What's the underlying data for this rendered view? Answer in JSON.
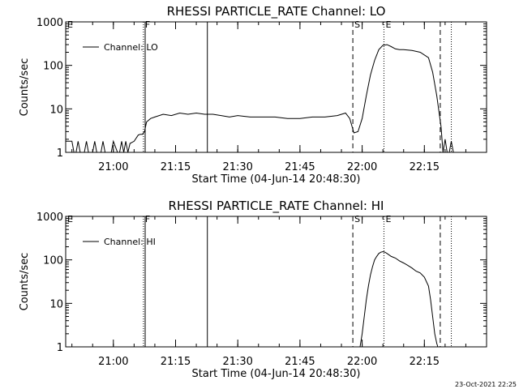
{
  "footer_timestamp": "23-Oct-2021 22:25",
  "chart_data": [
    {
      "type": "line",
      "title": "RHESSI PARTICLE_RATE Channel: LO",
      "xlabel": "Start Time (04-Jun-14 20:48:30)",
      "ylabel": "Counts/sec",
      "yscale": "log",
      "ylim": [
        1,
        1000
      ],
      "xlim_minutes_after_start": [
        0,
        101.5
      ],
      "xticks": [
        "21:00",
        "21:15",
        "21:30",
        "21:45",
        "22:00",
        "22:15"
      ],
      "yticks": [
        "1",
        "10",
        "100",
        "1000"
      ],
      "legend": "top-left",
      "series": [
        {
          "name": "Channel: LO",
          "x_time": [
            "20:48:30",
            "20:50:00",
            "20:50:30",
            "20:51:00",
            "20:51:30",
            "20:52:00",
            "20:53:00",
            "20:53:30",
            "20:54:00",
            "20:54:30",
            "20:55:00",
            "20:55:30",
            "20:56:00",
            "20:57:00",
            "20:57:30",
            "20:58:00",
            "20:58:30",
            "20:59:00",
            "20:59:30",
            "21:00:00",
            "21:01:00",
            "21:01:30",
            "21:02:00",
            "21:02:30",
            "21:03:00",
            "21:03:30",
            "21:04:00",
            "21:05:00",
            "21:06:00",
            "21:06:30",
            "21:07:00",
            "21:07:30",
            "21:08:00",
            "21:09:00",
            "21:10:00",
            "21:12:00",
            "21:14:00",
            "21:16:00",
            "21:18:00",
            "21:20:00",
            "21:22:00",
            "21:24:00",
            "21:26:00",
            "21:28:00",
            "21:30:00",
            "21:33:00",
            "21:36:00",
            "21:39:00",
            "21:42:00",
            "21:45:00",
            "21:48:00",
            "21:51:00",
            "21:54:00",
            "21:56:00",
            "21:57:00",
            "21:58:00",
            "21:59:00",
            "22:00:00",
            "22:01:00",
            "22:02:00",
            "22:03:00",
            "22:04:00",
            "22:05:00",
            "22:06:00",
            "22:07:00",
            "22:08:00",
            "22:09:00",
            "22:10:00",
            "22:12:00",
            "22:14:00",
            "22:16:00",
            "22:17:00",
            "22:18:00",
            "22:19:00",
            "22:19:30",
            "22:20:00",
            "22:20:30",
            "22:21:00",
            "22:21:30",
            "22:22:00"
          ],
          "values": [
            1.8,
            1.8,
            1,
            1,
            1.8,
            1,
            1,
            1.8,
            1,
            1,
            1,
            1.8,
            1,
            1,
            1.8,
            1,
            1,
            1,
            1,
            1.8,
            1,
            1,
            1.8,
            1,
            1.8,
            1,
            1.6,
            1.8,
            2.5,
            2.6,
            2.6,
            3,
            5,
            6,
            6.5,
            7.5,
            7,
            8,
            7.5,
            8,
            7.5,
            7.5,
            7,
            6.5,
            7,
            6.5,
            6.5,
            6.5,
            6,
            6,
            6.5,
            6.5,
            7,
            8,
            6,
            2.8,
            3,
            6,
            20,
            60,
            130,
            230,
            290,
            300,
            270,
            240,
            230,
            230,
            220,
            200,
            150,
            70,
            20,
            4,
            1,
            2,
            1,
            1,
            1.8,
            1
          ]
        }
      ],
      "vlines": [
        {
          "time": "20:48:30",
          "label": "E",
          "style": "solid"
        },
        {
          "time": "21:07:15",
          "label": "F",
          "style": "dotted"
        },
        {
          "time": "21:07:40",
          "label": "",
          "style": "solid"
        },
        {
          "time": "21:22:40",
          "label": "",
          "style": "solid"
        },
        {
          "time": "21:57:45",
          "label": "S",
          "style": "dashed"
        },
        {
          "time": "22:05:15",
          "label": "E",
          "style": "dotted"
        },
        {
          "time": "22:18:50",
          "label": "",
          "style": "dashed"
        },
        {
          "time": "22:21:30",
          "label": "",
          "style": "dotted"
        }
      ]
    },
    {
      "type": "line",
      "title": "RHESSI PARTICLE_RATE Channel: HI",
      "xlabel": "Start Time (04-Jun-14 20:48:30)",
      "ylabel": "Counts/sec",
      "yscale": "log",
      "ylim": [
        1,
        1000
      ],
      "xlim_minutes_after_start": [
        0,
        101.5
      ],
      "xticks": [
        "21:00",
        "21:15",
        "21:30",
        "21:45",
        "22:00",
        "22:15"
      ],
      "yticks": [
        "1",
        "10",
        "100",
        "1000"
      ],
      "legend": "top-left",
      "series": [
        {
          "name": "Channel: HI",
          "x_time": [
            "21:59:30",
            "22:00:00",
            "22:00:30",
            "22:01:00",
            "22:01:30",
            "22:02:00",
            "22:02:30",
            "22:03:00",
            "22:03:30",
            "22:04:00",
            "22:04:30",
            "22:05:00",
            "22:05:30",
            "22:06:00",
            "22:07:00",
            "22:08:00",
            "22:09:00",
            "22:10:00",
            "22:11:00",
            "22:12:00",
            "22:13:00",
            "22:14:00",
            "22:15:00",
            "22:16:00",
            "22:16:30",
            "22:17:00",
            "22:17:30",
            "22:18:00",
            "22:18:15"
          ],
          "values": [
            1,
            2,
            5,
            12,
            25,
            45,
            70,
            100,
            120,
            140,
            150,
            155,
            150,
            140,
            120,
            110,
            95,
            85,
            75,
            65,
            55,
            50,
            40,
            25,
            12,
            5,
            2,
            1.2,
            1
          ]
        }
      ],
      "vlines": [
        {
          "time": "20:48:30",
          "label": "E",
          "style": "solid"
        },
        {
          "time": "21:07:15",
          "label": "F",
          "style": "dotted"
        },
        {
          "time": "21:07:40",
          "label": "",
          "style": "solid"
        },
        {
          "time": "21:22:40",
          "label": "",
          "style": "solid"
        },
        {
          "time": "21:57:45",
          "label": "S",
          "style": "dashed"
        },
        {
          "time": "22:05:15",
          "label": "E",
          "style": "dotted"
        },
        {
          "time": "22:18:50",
          "label": "",
          "style": "dashed"
        },
        {
          "time": "22:21:30",
          "label": "",
          "style": "dotted"
        }
      ]
    }
  ]
}
